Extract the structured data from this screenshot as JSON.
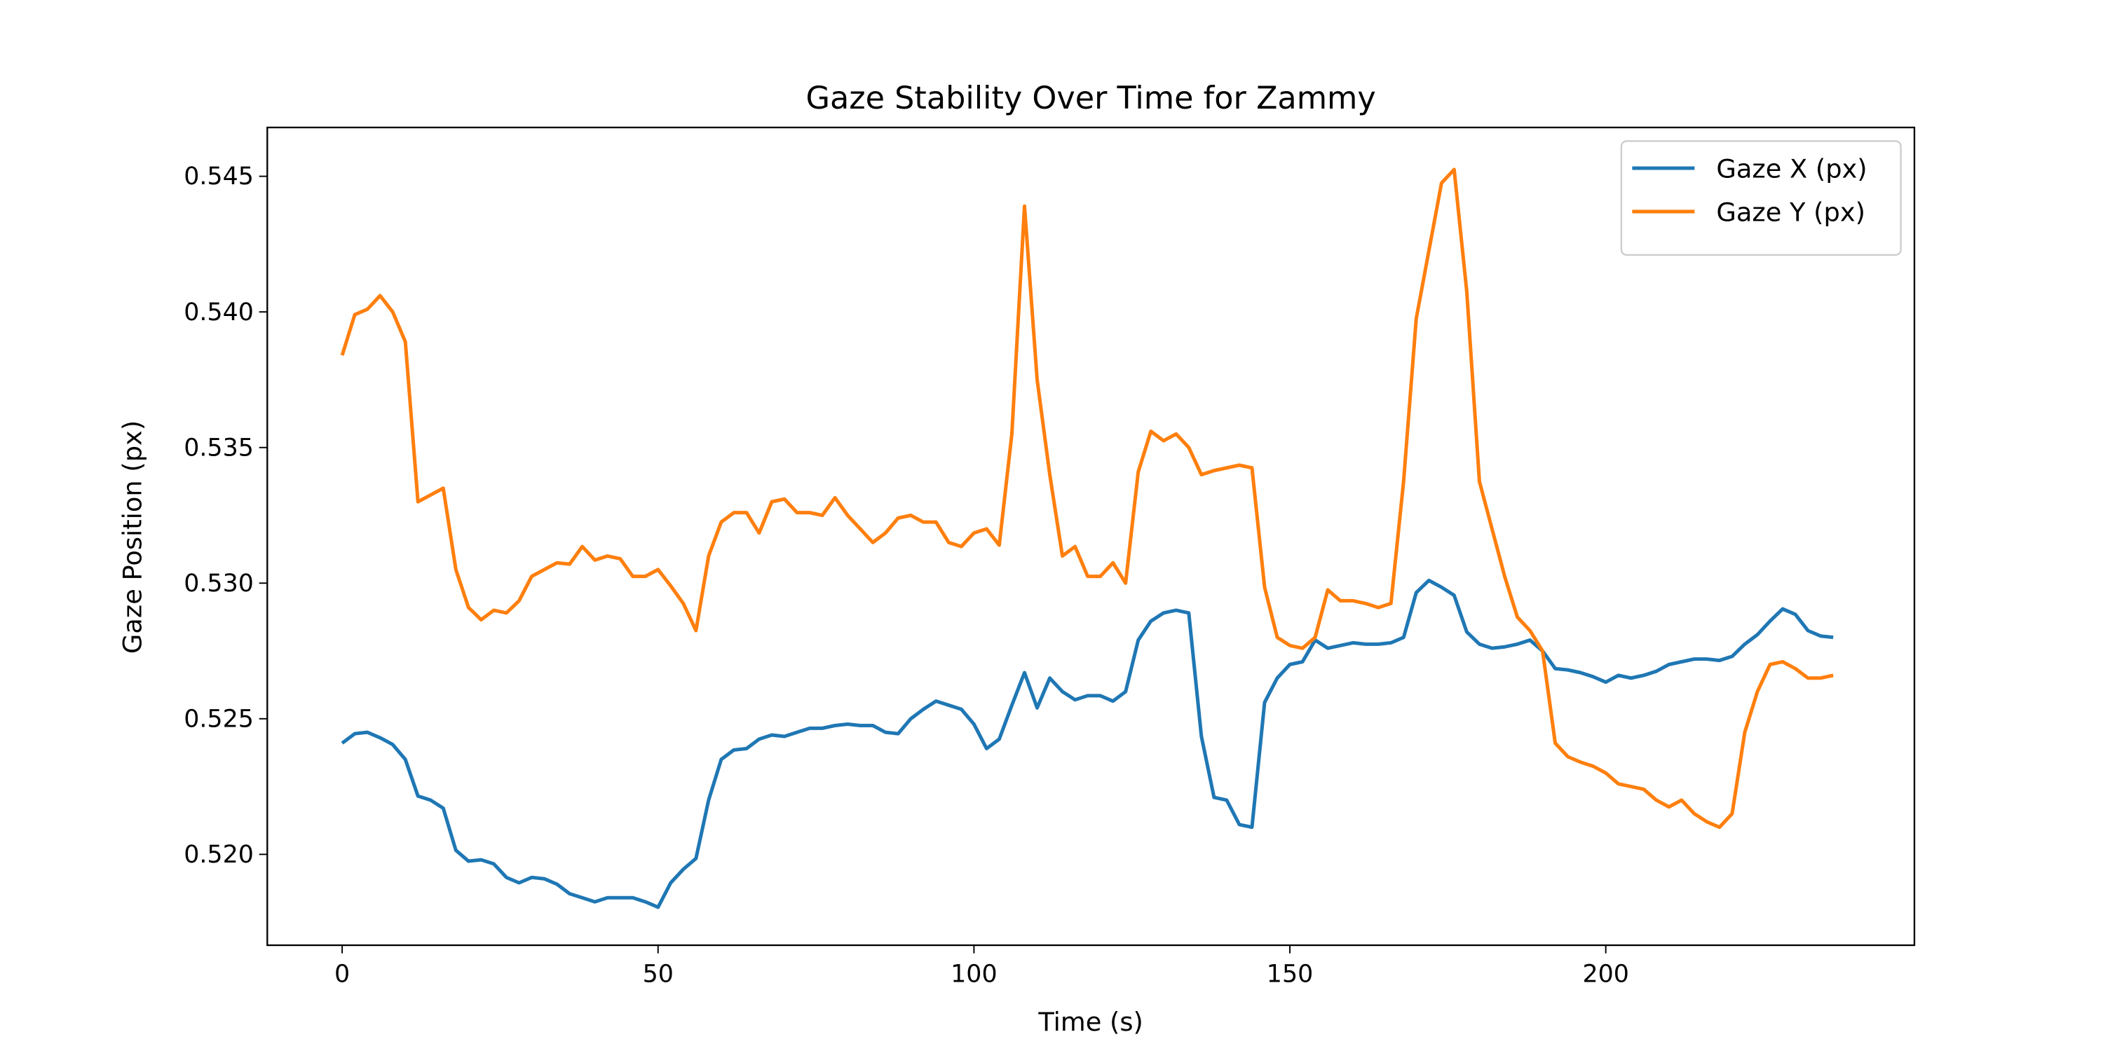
{
  "chart_data": {
    "type": "line",
    "title": "Gaze Stability Over Time for Zammy",
    "xlabel": "Time (s)",
    "ylabel": "Gaze Position (px)",
    "x": [
      0,
      2,
      4,
      6,
      8,
      10,
      12,
      14,
      16,
      18,
      20,
      22,
      24,
      26,
      28,
      30,
      32,
      34,
      36,
      38,
      40,
      42,
      44,
      46,
      48,
      50,
      52,
      54,
      56,
      58,
      60,
      62,
      64,
      66,
      68,
      70,
      72,
      74,
      76,
      78,
      80,
      82,
      84,
      86,
      88,
      90,
      92,
      94,
      96,
      98,
      100,
      102,
      104,
      106,
      108,
      110,
      112,
      114,
      116,
      118,
      120,
      122,
      124,
      126,
      128,
      130,
      132,
      134,
      136,
      138,
      140,
      142,
      144,
      146,
      148,
      150,
      152,
      154,
      156,
      158,
      160,
      162,
      164,
      166,
      168,
      170,
      172,
      174,
      176,
      178,
      180,
      182,
      184,
      186,
      188,
      190,
      192,
      194,
      196,
      198,
      200,
      202,
      204,
      206,
      208,
      210,
      212,
      214,
      216,
      218,
      220,
      222,
      224,
      226,
      228,
      230,
      232,
      234,
      236
    ],
    "series": [
      {
        "name": "Gaze X (px)",
        "color": "#1f77b4",
        "values": [
          0.5241,
          0.52445,
          0.5245,
          0.5243,
          0.52405,
          0.5235,
          0.52215,
          0.522,
          0.5217,
          0.52015,
          0.51975,
          0.5198,
          0.51965,
          0.51915,
          0.51895,
          0.51915,
          0.5191,
          0.5189,
          0.51855,
          0.5184,
          0.51825,
          0.5184,
          0.5184,
          0.5184,
          0.51825,
          0.51805,
          0.51895,
          0.51945,
          0.51985,
          0.522,
          0.5235,
          0.52385,
          0.5239,
          0.52425,
          0.5244,
          0.52435,
          0.5245,
          0.52465,
          0.52465,
          0.52475,
          0.5248,
          0.52475,
          0.52475,
          0.5245,
          0.52445,
          0.525,
          0.52535,
          0.52565,
          0.5255,
          0.52535,
          0.5248,
          0.5239,
          0.52425,
          0.5255,
          0.5267,
          0.5254,
          0.5265,
          0.526,
          0.5257,
          0.52585,
          0.52585,
          0.52565,
          0.526,
          0.5279,
          0.5286,
          0.5289,
          0.529,
          0.5289,
          0.52435,
          0.5221,
          0.522,
          0.5211,
          0.521,
          0.5256,
          0.5265,
          0.527,
          0.5271,
          0.5279,
          0.5276,
          0.5277,
          0.5278,
          0.52775,
          0.52775,
          0.5278,
          0.528,
          0.52965,
          0.5301,
          0.52985,
          0.52955,
          0.5282,
          0.52775,
          0.5276,
          0.52765,
          0.52775,
          0.5279,
          0.5275,
          0.52685,
          0.5268,
          0.5267,
          0.52655,
          0.52635,
          0.5266,
          0.5265,
          0.5266,
          0.52675,
          0.527,
          0.5271,
          0.5272,
          0.5272,
          0.52715,
          0.5273,
          0.52775,
          0.5281,
          0.5286,
          0.52905,
          0.52885,
          0.52825,
          0.52805,
          0.528
        ]
      },
      {
        "name": "Gaze Y (px)",
        "color": "#ff7f0e",
        "values": [
          0.5384,
          0.5399,
          0.5401,
          0.5406,
          0.54,
          0.5389,
          0.533,
          0.53325,
          0.5335,
          0.5305,
          0.5291,
          0.52865,
          0.529,
          0.5289,
          0.52935,
          0.53025,
          0.5305,
          0.53075,
          0.5307,
          0.53135,
          0.53085,
          0.531,
          0.5309,
          0.53025,
          0.53025,
          0.5305,
          0.5299,
          0.52925,
          0.52825,
          0.531,
          0.53225,
          0.5326,
          0.5326,
          0.53185,
          0.533,
          0.5331,
          0.5326,
          0.5326,
          0.5325,
          0.53315,
          0.5325,
          0.532,
          0.5315,
          0.53185,
          0.5324,
          0.5325,
          0.53225,
          0.53225,
          0.5315,
          0.53135,
          0.53185,
          0.532,
          0.5314,
          0.5355,
          0.5439,
          0.5375,
          0.534,
          0.531,
          0.53135,
          0.53025,
          0.53025,
          0.53075,
          0.53,
          0.5341,
          0.5356,
          0.53525,
          0.5355,
          0.535,
          0.534,
          0.53415,
          0.53425,
          0.53435,
          0.53425,
          0.52985,
          0.528,
          0.5277,
          0.5276,
          0.528,
          0.52975,
          0.52935,
          0.52935,
          0.52925,
          0.5291,
          0.52925,
          0.53375,
          0.53975,
          0.54225,
          0.54475,
          0.54525,
          0.54075,
          0.53375,
          0.532,
          0.53025,
          0.52875,
          0.52825,
          0.5275,
          0.5241,
          0.5236,
          0.5234,
          0.52325,
          0.523,
          0.5226,
          0.5225,
          0.5224,
          0.522,
          0.52175,
          0.522,
          0.5215,
          0.5212,
          0.521,
          0.5215,
          0.5245,
          0.526,
          0.527,
          0.5271,
          0.52685,
          0.5265,
          0.5265,
          0.5266
        ]
      }
    ],
    "xlim": [
      -11.85,
      248.85
    ],
    "ylim": [
      0.51665,
      0.5468
    ],
    "xticks": [
      0,
      50,
      100,
      150,
      200
    ],
    "yticks": [
      {
        "value": 0.52,
        "label": "0.520"
      },
      0.525,
      {
        "value": 0.53,
        "label": "0.530"
      },
      0.535,
      {
        "value": 0.54,
        "label": "0.540"
      },
      0.545
    ],
    "grid": false,
    "legend": "upper right"
  }
}
